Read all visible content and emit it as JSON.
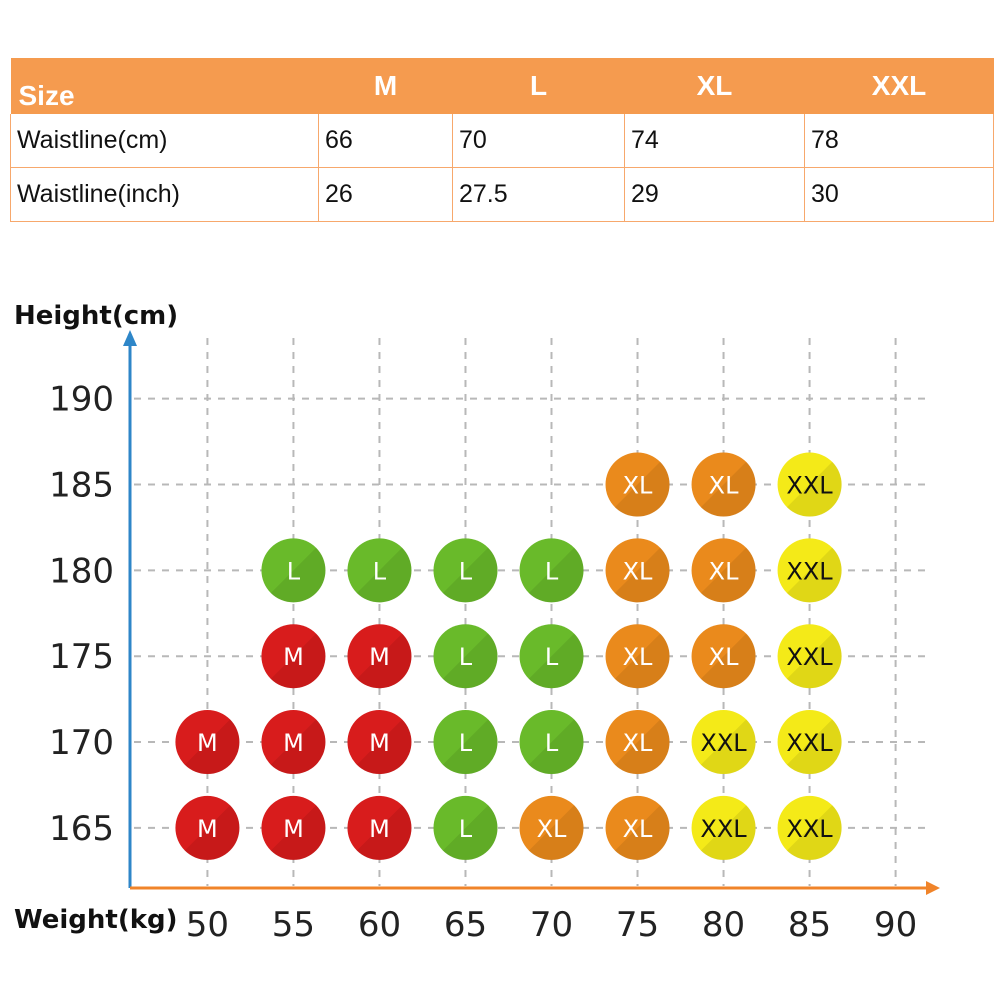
{
  "size_table": {
    "header": [
      "Size",
      "M",
      "L",
      "XL",
      "XXL"
    ],
    "rows": [
      [
        "Waistline(cm)",
        "66",
        "70",
        "74",
        "78"
      ],
      [
        "Waistline(inch)",
        "26",
        "27.5",
        "29",
        "30"
      ]
    ],
    "header_color": "#f59b4f",
    "border_color": "#f7a86c"
  },
  "chart_data": {
    "type": "scatter",
    "ylabel": "Height(cm)",
    "xlabel": "Weight(kg)",
    "x_ticks": [
      50,
      55,
      60,
      65,
      70,
      75,
      80,
      85,
      90
    ],
    "y_ticks": [
      165,
      170,
      175,
      180,
      185,
      190
    ],
    "xlim": [
      45.5,
      92
    ],
    "ylim": [
      161.5,
      194
    ],
    "grid": true,
    "size_colors": {
      "M": "#d81c1c",
      "L": "#69ba2a",
      "XL": "#ea8a1c",
      "XXL": "#f4ea18"
    },
    "label_colors": {
      "M": "#ffffff",
      "L": "#ffffff",
      "XL": "#ffffff",
      "XXL": "#111111"
    },
    "axis_colors": {
      "y": "#2e86c8",
      "x": "#f0842a"
    },
    "points": [
      {
        "x": 75,
        "y": 185,
        "size": "XL"
      },
      {
        "x": 80,
        "y": 185,
        "size": "XL"
      },
      {
        "x": 85,
        "y": 185,
        "size": "XXL"
      },
      {
        "x": 55,
        "y": 180,
        "size": "L"
      },
      {
        "x": 60,
        "y": 180,
        "size": "L"
      },
      {
        "x": 65,
        "y": 180,
        "size": "L"
      },
      {
        "x": 70,
        "y": 180,
        "size": "L"
      },
      {
        "x": 75,
        "y": 180,
        "size": "XL"
      },
      {
        "x": 80,
        "y": 180,
        "size": "XL"
      },
      {
        "x": 85,
        "y": 180,
        "size": "XXL"
      },
      {
        "x": 55,
        "y": 175,
        "size": "M"
      },
      {
        "x": 60,
        "y": 175,
        "size": "M"
      },
      {
        "x": 65,
        "y": 175,
        "size": "L"
      },
      {
        "x": 70,
        "y": 175,
        "size": "L"
      },
      {
        "x": 75,
        "y": 175,
        "size": "XL"
      },
      {
        "x": 80,
        "y": 175,
        "size": "XL"
      },
      {
        "x": 85,
        "y": 175,
        "size": "XXL"
      },
      {
        "x": 50,
        "y": 170,
        "size": "M"
      },
      {
        "x": 55,
        "y": 170,
        "size": "M"
      },
      {
        "x": 60,
        "y": 170,
        "size": "M"
      },
      {
        "x": 65,
        "y": 170,
        "size": "L"
      },
      {
        "x": 70,
        "y": 170,
        "size": "L"
      },
      {
        "x": 75,
        "y": 170,
        "size": "XL"
      },
      {
        "x": 80,
        "y": 170,
        "size": "XXL"
      },
      {
        "x": 85,
        "y": 170,
        "size": "XXL"
      },
      {
        "x": 50,
        "y": 165,
        "size": "M"
      },
      {
        "x": 55,
        "y": 165,
        "size": "M"
      },
      {
        "x": 60,
        "y": 165,
        "size": "M"
      },
      {
        "x": 65,
        "y": 165,
        "size": "L"
      },
      {
        "x": 70,
        "y": 165,
        "size": "XL"
      },
      {
        "x": 75,
        "y": 165,
        "size": "XL"
      },
      {
        "x": 80,
        "y": 165,
        "size": "XXL"
      },
      {
        "x": 85,
        "y": 165,
        "size": "XXL"
      }
    ]
  }
}
